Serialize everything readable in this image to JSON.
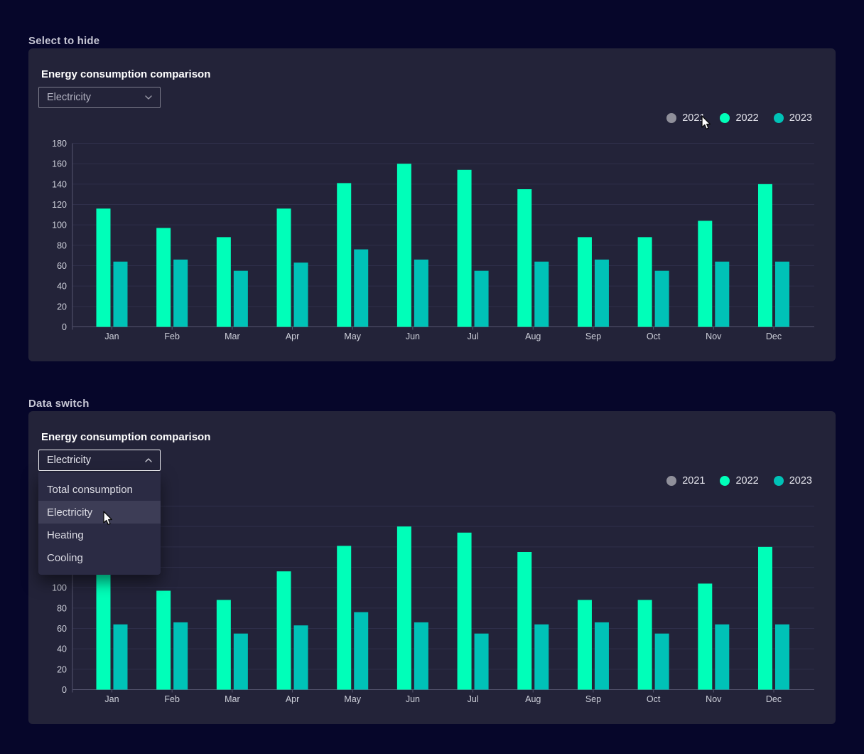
{
  "sections": [
    {
      "heading": "Select to hide",
      "card": {
        "title": "Energy consumption comparison",
        "select": {
          "value": "Electricity",
          "state": "closed"
        }
      }
    },
    {
      "heading": "Data switch",
      "card": {
        "title": "Energy consumption comparison",
        "select": {
          "value": "Electricity",
          "state": "open",
          "options": [
            "Total consumption",
            "Electricity",
            "Heating",
            "Cooling"
          ],
          "highlighted_index": 1
        }
      }
    }
  ],
  "chart_data": [
    {
      "type": "bar",
      "title": "Energy consumption comparison",
      "categories": [
        "Jan",
        "Feb",
        "Mar",
        "Apr",
        "May",
        "Jun",
        "Jul",
        "Aug",
        "Sep",
        "Oct",
        "Nov",
        "Dec"
      ],
      "series": [
        {
          "name": "2021",
          "color": "#8f8f9a",
          "hidden": true,
          "values": null
        },
        {
          "name": "2022",
          "color": "#00ffb9",
          "hidden": false,
          "values": [
            116,
            97,
            88,
            116,
            141,
            160,
            154,
            135,
            88,
            88,
            104,
            140
          ]
        },
        {
          "name": "2023",
          "color": "#00c2b7",
          "hidden": false,
          "values": [
            64,
            66,
            55,
            63,
            76,
            66,
            55,
            64,
            66,
            55,
            64,
            64
          ]
        }
      ],
      "xlabel": "",
      "ylabel": "",
      "ylim": [
        0,
        180
      ],
      "ytick_step": 20,
      "grid": true,
      "legend_position": "top-right"
    },
    {
      "type": "bar",
      "title": "Energy consumption comparison",
      "categories": [
        "Jan",
        "Feb",
        "Mar",
        "Apr",
        "May",
        "Jun",
        "Jul",
        "Aug",
        "Sep",
        "Oct",
        "Nov",
        "Dec"
      ],
      "series": [
        {
          "name": "2021",
          "color": "#8f8f9a",
          "hidden": true,
          "values": null
        },
        {
          "name": "2022",
          "color": "#00ffb9",
          "hidden": false,
          "values": [
            116,
            97,
            88,
            116,
            141,
            160,
            154,
            135,
            88,
            88,
            104,
            140
          ]
        },
        {
          "name": "2023",
          "color": "#00c2b7",
          "hidden": false,
          "values": [
            64,
            66,
            55,
            63,
            76,
            66,
            55,
            64,
            66,
            55,
            64,
            64
          ]
        }
      ],
      "xlabel": "",
      "ylabel": "",
      "ylim": [
        0,
        180
      ],
      "ytick_step": 20,
      "grid": true,
      "legend_position": "top-right"
    }
  ],
  "style": {
    "page_bg": "#06062a",
    "card_bg": "#232339",
    "gridline": "#2f2f4a",
    "axis_line": "#55556e",
    "axis_label": "#ced0da"
  }
}
